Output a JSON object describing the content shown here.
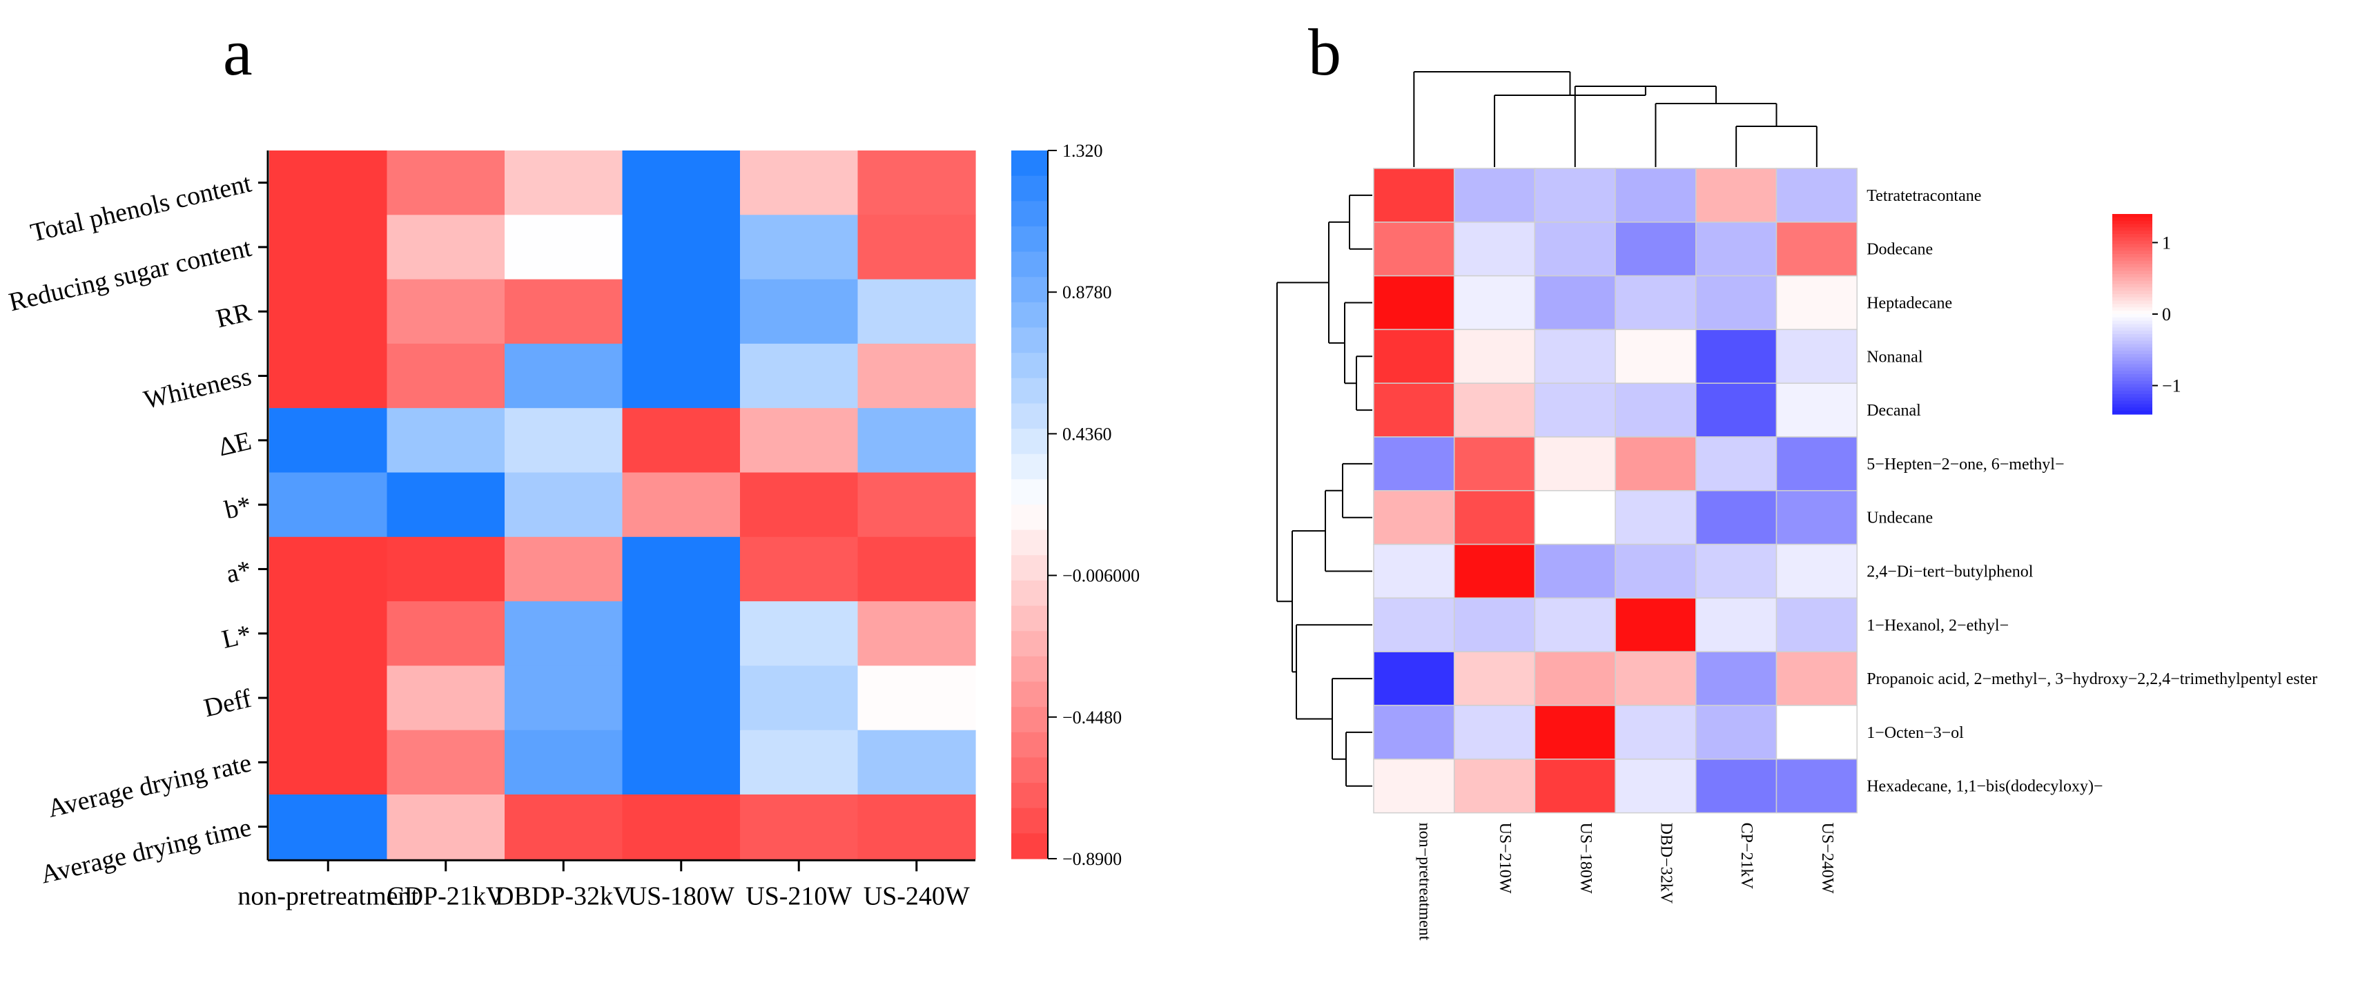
{
  "chart_data": [
    {
      "panel": "a",
      "type": "heatmap",
      "columns": [
        "non-pretreatment",
        "CDP-21kV",
        "DBDP-32kV",
        "US-180W",
        "US-210W",
        "US-240W"
      ],
      "rows": [
        "Total phenols content",
        "Reducing sugar content",
        "RR",
        "Whiteness",
        "ΔE",
        "b*",
        "a*",
        "L*",
        "Deff",
        "Average drying rate",
        "Average drying time"
      ],
      "values": [
        [
          -0.89,
          -0.55,
          -0.1,
          1.32,
          -0.12,
          -0.65
        ],
        [
          -0.89,
          -0.15,
          0.22,
          1.32,
          0.75,
          -0.68
        ],
        [
          -0.89,
          -0.45,
          -0.62,
          1.32,
          0.9,
          0.55
        ],
        [
          -0.89,
          -0.58,
          0.95,
          1.32,
          0.58,
          -0.25
        ],
        [
          1.32,
          0.7,
          0.5,
          -0.82,
          -0.25,
          0.8
        ],
        [
          1.05,
          1.32,
          0.65,
          -0.4,
          -0.8,
          -0.68
        ],
        [
          -0.89,
          -0.86,
          -0.42,
          1.32,
          -0.72,
          -0.8
        ],
        [
          -0.89,
          -0.62,
          0.92,
          1.32,
          0.48,
          -0.3
        ],
        [
          -0.89,
          -0.2,
          0.92,
          1.32,
          0.58,
          0.2
        ],
        [
          -0.89,
          -0.5,
          1.0,
          1.32,
          0.48,
          0.68
        ],
        [
          1.32,
          -0.18,
          -0.78,
          -0.84,
          -0.72,
          -0.76
        ]
      ],
      "colorbar": {
        "min": -0.89,
        "max": 1.32,
        "ticks": [
          "1.320",
          "0.8780",
          "0.4360",
          "−0.006000",
          "−0.4480",
          "−0.8900"
        ]
      },
      "colors": {
        "low": "#FF3A3A",
        "mid": "#FFFFFF",
        "high": "#1A7CFF"
      }
    },
    {
      "panel": "b",
      "type": "heatmap",
      "columns": [
        "non−pretreatment",
        "US−210W",
        "US−180W",
        "DBD−32kV",
        "CP−21kV",
        "US−240W"
      ],
      "rows": [
        "Tetratetracontane",
        "Dodecane",
        "Heptadecane",
        "Nonanal",
        "Decanal",
        "5−Hepten−2−one, 6−methyl−",
        "Undecane",
        "2,4−Di−tert−butylphenol",
        "1−Hexanol, 2−ethyl−",
        "Propanoic acid, 2−methyl−, 3−hydroxy−2,2,4−trimethylpentyl ester",
        "1−Octen−3−ol",
        "Hexadecane, 1,1−bis(dodecyloxy)−"
      ],
      "values": [
        [
          1.15,
          -0.45,
          -0.38,
          -0.5,
          0.45,
          -0.42
        ],
        [
          0.85,
          -0.2,
          -0.4,
          -0.75,
          -0.45,
          0.8
        ],
        [
          1.4,
          -0.1,
          -0.55,
          -0.35,
          -0.45,
          0.05
        ],
        [
          1.2,
          0.1,
          -0.25,
          0.05,
          -1.1,
          -0.2
        ],
        [
          1.1,
          0.3,
          -0.3,
          -0.35,
          -1.05,
          -0.08
        ],
        [
          -0.75,
          0.95,
          0.1,
          0.6,
          -0.3,
          -0.8
        ],
        [
          0.45,
          1.05,
          0.0,
          -0.25,
          -0.85,
          -0.7
        ],
        [
          -0.15,
          1.4,
          -0.55,
          -0.4,
          -0.3,
          -0.12
        ],
        [
          -0.3,
          -0.35,
          -0.25,
          1.4,
          -0.15,
          -0.35
        ],
        [
          -1.3,
          0.3,
          0.5,
          0.4,
          -0.65,
          0.45
        ],
        [
          -0.6,
          -0.25,
          1.4,
          -0.25,
          -0.45,
          0.0
        ],
        [
          0.08,
          0.35,
          1.15,
          -0.15,
          -0.85,
          -0.8
        ]
      ],
      "colorbar": {
        "min": -1.4,
        "max": 1.4,
        "ticks": [
          "1",
          "0",
          "−1"
        ]
      },
      "colors": {
        "low": "#2323FF",
        "mid": "#FFFFFF",
        "high": "#FF1111"
      }
    }
  ],
  "labels": {
    "panel_a": "a",
    "panel_b": "b"
  }
}
